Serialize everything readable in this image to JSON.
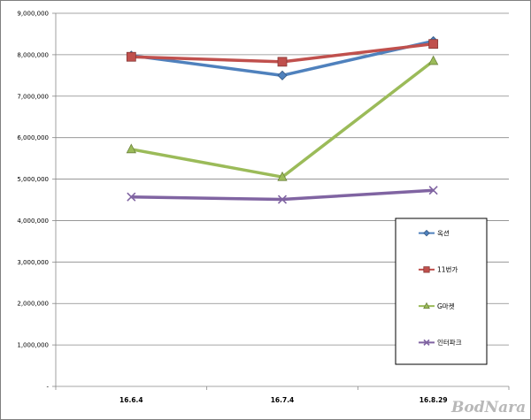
{
  "chart_data": {
    "type": "line",
    "categories": [
      "16.6.4",
      "16.7.4",
      "16.8.29"
    ],
    "y_ticks": [
      "-",
      "1,000,000",
      "2,000,000",
      "3,000,000",
      "4,000,000",
      "5,000,000",
      "6,000,000",
      "7,000,000",
      "8,000,000",
      "9,000,000"
    ],
    "ylim": [
      0,
      9000000
    ],
    "grid": true,
    "legend_position": "bottom-right",
    "title": "",
    "xlabel": "",
    "ylabel": "",
    "series": [
      {
        "name": "옥션",
        "values": [
          7980000,
          7500000,
          8330000
        ],
        "color": "#4f81bd",
        "marker": "diamond"
      },
      {
        "name": "11번가",
        "values": [
          7950000,
          7830000,
          8260000
        ],
        "color": "#c0504d",
        "marker": "square"
      },
      {
        "name": "G마켓",
        "values": [
          5720000,
          5050000,
          7850000
        ],
        "color": "#9bbb59",
        "marker": "triangle"
      },
      {
        "name": "인터파크",
        "values": [
          4570000,
          4510000,
          4730000
        ],
        "color": "#8064a2",
        "marker": "x"
      }
    ]
  },
  "watermark": "BodNara"
}
